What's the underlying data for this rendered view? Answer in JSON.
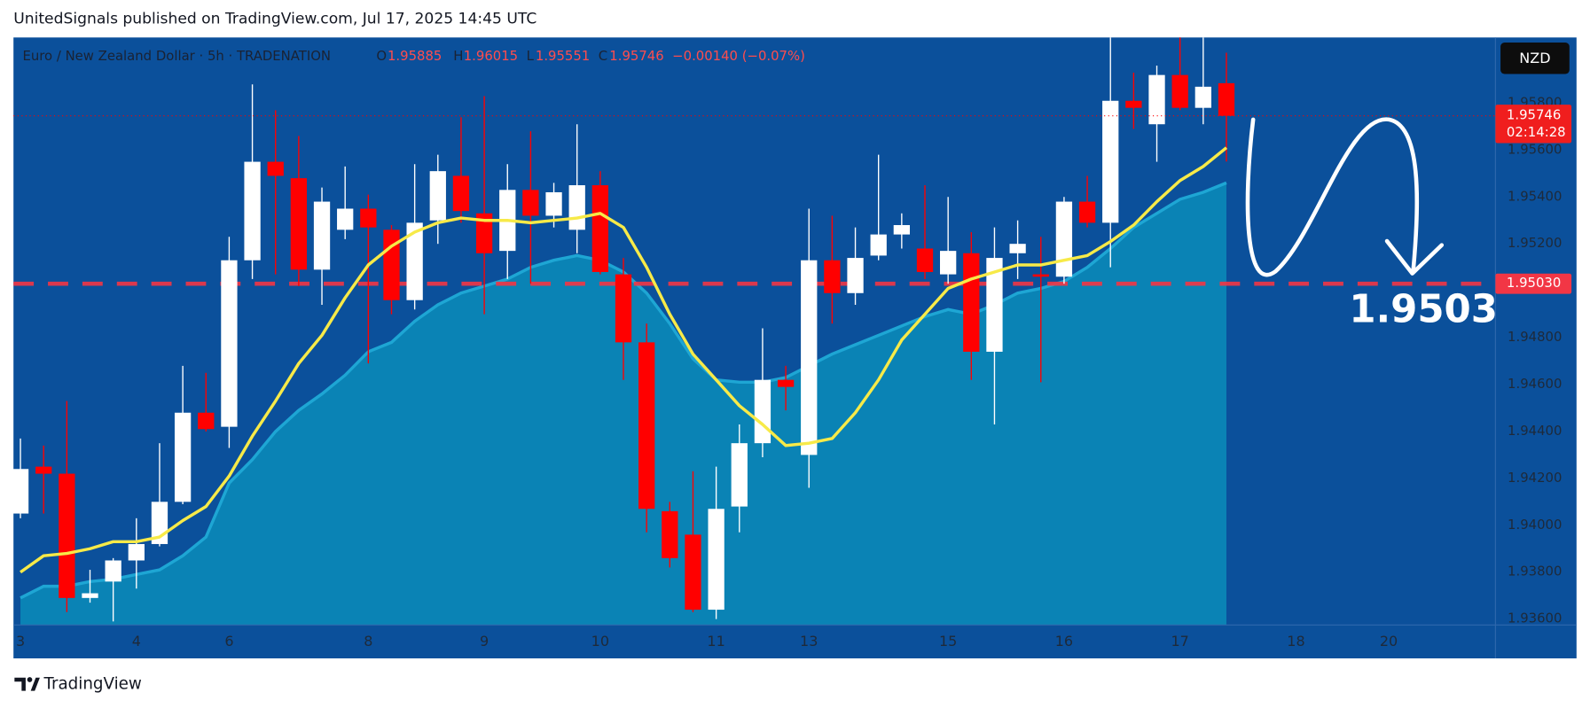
{
  "header": "UnitedSignals published on TradingView.com, Jul 17, 2025 14:45 UTC",
  "footer": "TradingView",
  "chart_data": {
    "type": "candlestick",
    "title": "Euro / New Zealand Dollar · 5h · TRADENATION",
    "currency": "NZD",
    "ohlc_labels": [
      "O",
      "H",
      "L",
      "C"
    ],
    "change_label": "−0.00140 (−0.07%)",
    "countdown": "02:14:28",
    "up_color": "#ffffff",
    "down_color": "#ff0000",
    "open": [
      1.9405,
      1.9425,
      1.9422,
      1.9369,
      1.9376,
      1.9385,
      1.9392,
      1.941,
      1.9448,
      1.9442,
      1.9513,
      1.9555,
      1.9548,
      1.9509,
      1.9526,
      1.9535,
      1.9526,
      1.9496,
      1.953,
      1.9549,
      1.9533,
      1.9517,
      1.9543,
      1.9532,
      1.9526,
      1.9545,
      1.9507,
      1.9478,
      1.9406,
      1.9396,
      1.9364,
      1.9408,
      1.9435,
      1.9462,
      1.943,
      1.9513,
      1.9499,
      1.9515,
      1.9524,
      1.9518,
      1.9507,
      1.9516,
      1.9474,
      1.9516,
      1.9507,
      1.9506,
      1.9538,
      1.9529,
      1.9581,
      1.9571,
      1.9592,
      1.9578,
      1.95885
    ],
    "high": [
      1.9437,
      1.9434,
      1.9453,
      1.9381,
      1.9386,
      1.9403,
      1.9435,
      1.9468,
      1.9465,
      1.9523,
      1.9588,
      1.9577,
      1.9566,
      1.9544,
      1.9553,
      1.9541,
      1.9528,
      1.9554,
      1.9558,
      1.9574,
      1.9583,
      1.9554,
      1.9568,
      1.9546,
      1.9571,
      1.9551,
      1.9514,
      1.9486,
      1.941,
      1.9423,
      1.9425,
      1.9443,
      1.9484,
      1.9468,
      1.9535,
      1.9532,
      1.9527,
      1.9558,
      1.9533,
      1.9545,
      1.954,
      1.9525,
      1.9527,
      1.953,
      1.9523,
      1.954,
      1.9549,
      1.9608,
      1.9593,
      1.9596,
      1.9608,
      1.9608,
      1.96015
    ],
    "low": [
      1.9403,
      1.9405,
      1.9363,
      1.9367,
      1.9359,
      1.9373,
      1.9391,
      1.9409,
      1.944,
      1.9433,
      1.9505,
      1.9507,
      1.9502,
      1.9494,
      1.9522,
      1.9469,
      1.949,
      1.9492,
      1.952,
      1.9529,
      1.949,
      1.9505,
      1.9503,
      1.9527,
      1.9516,
      1.9507,
      1.9462,
      1.9397,
      1.9382,
      1.9363,
      1.936,
      1.9397,
      1.9429,
      1.9449,
      1.9416,
      1.9486,
      1.9494,
      1.9513,
      1.9518,
      1.9505,
      1.9503,
      1.9462,
      1.9443,
      1.9505,
      1.9461,
      1.9503,
      1.9527,
      1.951,
      1.9569,
      1.9555,
      1.9577,
      1.9571,
      1.95551
    ],
    "close": [
      1.9424,
      1.9422,
      1.9369,
      1.9371,
      1.9385,
      1.9392,
      1.941,
      1.9448,
      1.9441,
      1.9513,
      1.9555,
      1.9549,
      1.9509,
      1.9538,
      1.9535,
      1.9527,
      1.9496,
      1.9529,
      1.9551,
      1.9534,
      1.9516,
      1.9543,
      1.9532,
      1.9542,
      1.9545,
      1.9508,
      1.9478,
      1.9407,
      1.9386,
      1.9364,
      1.9407,
      1.9435,
      1.9462,
      1.9459,
      1.9513,
      1.9499,
      1.9514,
      1.9524,
      1.9528,
      1.9508,
      1.9517,
      1.9474,
      1.9514,
      1.952,
      1.9506,
      1.9538,
      1.9529,
      1.9581,
      1.9578,
      1.9592,
      1.9578,
      1.9587,
      1.95746
    ],
    "overlays": [
      {
        "kind": "area",
        "color": "#0b86b6",
        "line_color": "#1ea6d4",
        "values": [
          1.9369,
          1.9374,
          1.9374,
          1.9376,
          1.9377,
          1.9379,
          1.9381,
          1.9387,
          1.9395,
          1.9418,
          1.9428,
          1.944,
          1.9449,
          1.9456,
          1.9464,
          1.9474,
          1.9478,
          1.9487,
          1.9494,
          1.9499,
          1.9502,
          1.9505,
          1.951,
          1.9513,
          1.9515,
          1.9513,
          1.9508,
          1.9499,
          1.9486,
          1.9471,
          1.9462,
          1.9461,
          1.9461,
          1.9463,
          1.9468,
          1.9473,
          1.9477,
          1.9481,
          1.9485,
          1.9489,
          1.9492,
          1.949,
          1.9494,
          1.9499,
          1.9501,
          1.9504,
          1.951,
          1.9518,
          1.9527,
          1.9533,
          1.9539,
          1.9542,
          1.9546
        ]
      },
      {
        "kind": "line",
        "color": "#f7ea48",
        "values": [
          1.938,
          1.9387,
          1.9388,
          1.939,
          1.9393,
          1.9393,
          1.9395,
          1.9402,
          1.9408,
          1.9421,
          1.9438,
          1.9453,
          1.9469,
          1.9481,
          1.9497,
          1.9511,
          1.9519,
          1.9525,
          1.9529,
          1.9531,
          1.953,
          1.953,
          1.9529,
          1.953,
          1.9531,
          1.9533,
          1.9527,
          1.951,
          1.949,
          1.9473,
          1.9462,
          1.9451,
          1.9443,
          1.9434,
          1.9435,
          1.9437,
          1.9448,
          1.9462,
          1.9479,
          1.949,
          1.9501,
          1.9505,
          1.9508,
          1.9511,
          1.9511,
          1.9513,
          1.9515,
          1.9521,
          1.9528,
          1.9538,
          1.9547,
          1.9553,
          1.9561
        ]
      }
    ],
    "level": {
      "value": 1.9503,
      "label": "1.95030"
    },
    "level_color": "#f23645",
    "xlim": [
      -0.3,
      63.6
    ],
    "xticks": [
      {
        "value": 0,
        "label": "3"
      },
      {
        "value": 5,
        "label": "4"
      },
      {
        "value": 9,
        "label": "6"
      },
      {
        "value": 15,
        "label": "8"
      },
      {
        "value": 20,
        "label": "9"
      },
      {
        "value": 25,
        "label": "10"
      },
      {
        "value": 30,
        "label": "11"
      },
      {
        "value": 34,
        "label": "13"
      },
      {
        "value": 40,
        "label": "15"
      },
      {
        "value": 45,
        "label": "16"
      },
      {
        "value": 50,
        "label": "17"
      },
      {
        "value": 55,
        "label": "18"
      },
      {
        "value": 59,
        "label": "20"
      }
    ],
    "ylim": [
      1.93575,
      1.9608
    ],
    "yticks": [
      {
        "value": 1.936,
        "label": "1.93600"
      },
      {
        "value": 1.938,
        "label": "1.93800"
      },
      {
        "value": 1.94,
        "label": "1.94000"
      },
      {
        "value": 1.942,
        "label": "1.94200"
      },
      {
        "value": 1.944,
        "label": "1.94400"
      },
      {
        "value": 1.946,
        "label": "1.94600"
      },
      {
        "value": 1.948,
        "label": "1.94800"
      },
      {
        "value": 1.952,
        "label": "1.95200"
      },
      {
        "value": 1.954,
        "label": "1.95400"
      },
      {
        "value": 1.956,
        "label": "1.95600"
      },
      {
        "value": 1.958,
        "label": "1.95800"
      }
    ]
  }
}
